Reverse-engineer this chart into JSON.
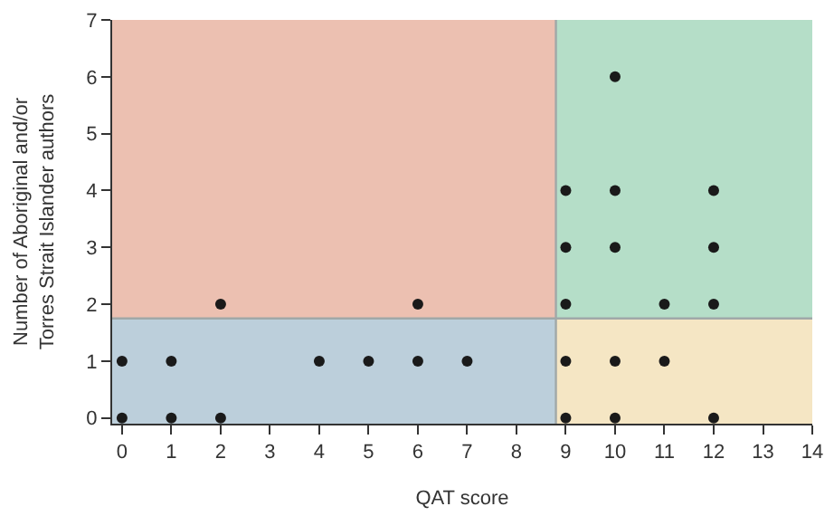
{
  "chart_data": {
    "type": "scatter",
    "xlabel": "QAT score",
    "ylabel": "Number of Aboriginal and/or\nTorres Strait Islander authors",
    "x": [
      0,
      0,
      1,
      1,
      2,
      2,
      4,
      5,
      6,
      6,
      7,
      9,
      9,
      9,
      9,
      9,
      10,
      10,
      10,
      10,
      10,
      11,
      11,
      12,
      12,
      12,
      12
    ],
    "series": [
      {
        "color": "#1a1a1a",
        "values": [
          0,
          1,
          0,
          1,
          0,
          2,
          1,
          1,
          1,
          2,
          1,
          0,
          1,
          2,
          3,
          4,
          0,
          1,
          3,
          4,
          6,
          1,
          2,
          0,
          2,
          3,
          4
        ]
      }
    ],
    "marker": "circle",
    "xlim": [
      -0.2,
      14
    ],
    "xticks": [
      0,
      1,
      2,
      3,
      4,
      5,
      6,
      7,
      8,
      9,
      10,
      11,
      12,
      13,
      14
    ],
    "ylim": [
      -0.1,
      7
    ],
    "yticks": [
      0,
      1,
      2,
      3,
      4,
      5,
      6,
      7
    ],
    "bands": [
      {
        "axis": "x",
        "from": -0.2,
        "to": 8.8,
        "color": "#bccfdb"
      },
      {
        "axis": "x",
        "from": -0.2,
        "to": 8.8,
        "color": "#ecc0b1"
      },
      {
        "axis": "x",
        "from": 8.8,
        "to": 14,
        "color": "#f5e6c4"
      },
      {
        "axis": "x",
        "from": 8.8,
        "to": 14,
        "color": "#b5dec8"
      }
    ],
    "ref_lines": [
      {
        "axis": "x",
        "value": 8.8,
        "color": "#a0a8a8"
      },
      {
        "axis": "y",
        "value": 1.75,
        "color": "#a0a8a8"
      }
    ],
    "grid": false,
    "legend": false
  }
}
